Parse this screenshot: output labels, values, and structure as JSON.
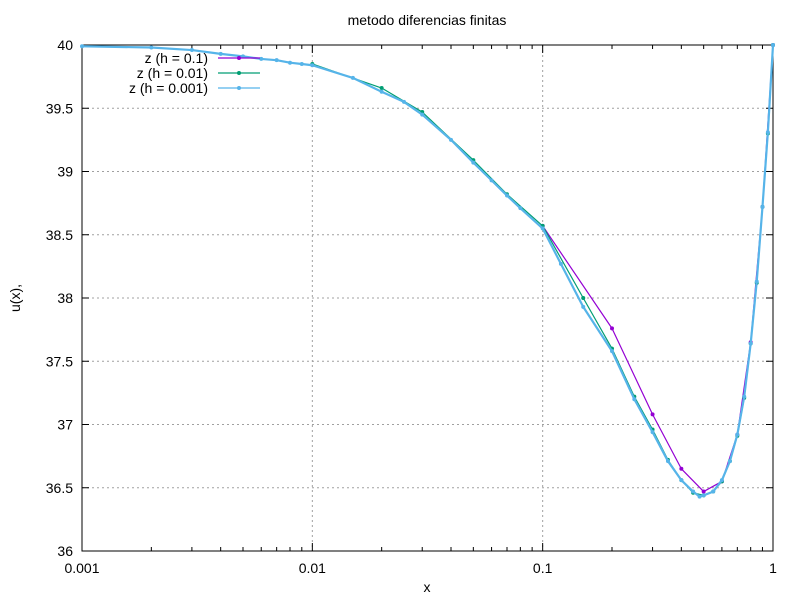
{
  "chart_data": {
    "type": "line",
    "title": "metodo diferencias finitas",
    "xlabel": "x",
    "ylabel": "u(x),",
    "xscale": "log",
    "xlim": [
      0.001,
      1
    ],
    "ylim": [
      36,
      40
    ],
    "xticks": [
      0.001,
      0.01,
      0.1,
      1
    ],
    "xtick_labels": [
      "0.001",
      "0.01",
      "0.1",
      "1"
    ],
    "yticks": [
      36,
      36.5,
      37,
      37.5,
      38,
      38.5,
      39,
      39.5,
      40
    ],
    "ytick_labels": [
      "36",
      "36.5",
      "37",
      "37.5",
      "38",
      "38.5",
      "39",
      "39.5",
      "40"
    ],
    "grid": true,
    "legend_position": "top-left",
    "series": [
      {
        "name": "z (h = 0.1)",
        "color": "#9400d3",
        "x": [
          0.1,
          0.2,
          0.3,
          0.4,
          0.5,
          0.6,
          0.7,
          0.8,
          0.9,
          1.0
        ],
        "y": [
          38.57,
          37.76,
          37.08,
          36.65,
          36.47,
          36.55,
          36.92,
          37.65,
          38.72,
          40.0
        ]
      },
      {
        "name": "z (h = 0.01)",
        "color": "#009e73",
        "x": [
          0.01,
          0.02,
          0.03,
          0.05,
          0.07,
          0.1,
          0.15,
          0.2,
          0.25,
          0.3,
          0.35,
          0.4,
          0.45,
          0.5,
          0.55,
          0.6,
          0.65,
          0.7,
          0.75,
          0.8,
          0.85,
          0.9,
          0.95,
          1.0
        ],
        "y": [
          39.85,
          39.66,
          39.47,
          39.09,
          38.82,
          38.57,
          38.0,
          37.6,
          37.22,
          36.96,
          36.72,
          36.56,
          36.46,
          36.44,
          36.47,
          36.55,
          36.71,
          36.91,
          37.21,
          37.64,
          38.12,
          38.72,
          39.3,
          40.0
        ]
      },
      {
        "name": "z (h = 0.001)",
        "color": "#56b4e9",
        "x": [
          0.001,
          0.002,
          0.003,
          0.004,
          0.005,
          0.006,
          0.007,
          0.008,
          0.009,
          0.01,
          0.015,
          0.02,
          0.025,
          0.03,
          0.04,
          0.05,
          0.06,
          0.07,
          0.08,
          0.1,
          0.12,
          0.15,
          0.2,
          0.25,
          0.3,
          0.35,
          0.4,
          0.45,
          0.48,
          0.5,
          0.55,
          0.6,
          0.65,
          0.7,
          0.75,
          0.8,
          0.85,
          0.9,
          0.95,
          1.0
        ],
        "y": [
          39.99,
          39.98,
          39.96,
          39.93,
          39.91,
          39.89,
          39.88,
          39.86,
          39.85,
          39.84,
          39.74,
          39.63,
          39.55,
          39.45,
          39.25,
          39.07,
          38.93,
          38.81,
          38.71,
          38.55,
          38.27,
          37.93,
          37.58,
          37.2,
          36.94,
          36.71,
          36.56,
          36.47,
          36.43,
          36.44,
          36.47,
          36.56,
          36.71,
          36.92,
          37.22,
          37.64,
          38.13,
          38.72,
          39.31,
          40.0
        ]
      }
    ]
  }
}
